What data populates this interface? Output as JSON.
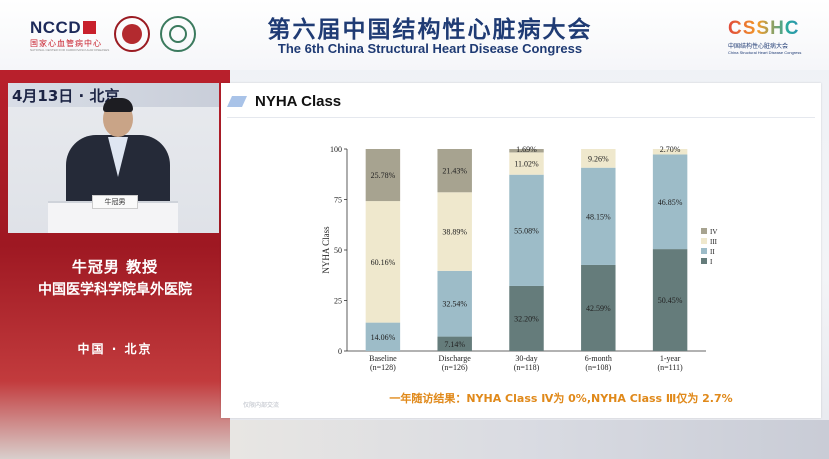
{
  "header": {
    "logo_nccd": "NCCD",
    "logo_nccd_sub": "国家心血管病中心",
    "logo_nccd_sub2": "NATIONAL CENTER FOR CARDIOVASCULAR DISEASES",
    "congress_cn": "第六届中国结构性心脏病大会",
    "congress_en": "The 6th China Structural Heart Disease Congress",
    "logo_csshc": "CSSHC",
    "logo_csshc_sub": "中国结构性心脏病大会",
    "logo_csshc_sub2": "China Structural Heart Disease Congress"
  },
  "video": {
    "banner_text": "4月13日 · 北京",
    "nameplate": "牛冠男"
  },
  "speaker": {
    "name": "牛冠男 教授",
    "org": "中国医学科学院阜外医院",
    "location": "中国 · 北京"
  },
  "slide": {
    "title": "NYHA Class",
    "conclusion": "一年随访结果：NYHA Class Ⅳ为 0%,NYHA Class Ⅲ仅为 2.7%",
    "watermark": "仅限内部交流"
  },
  "chart_data": {
    "type": "bar",
    "stacked": true,
    "ylabel": "NYHA Class",
    "ylim": [
      0,
      100
    ],
    "yticks": [
      "0",
      "25",
      "50",
      "75",
      "100"
    ],
    "categories": [
      "Baseline",
      "Discharge",
      "30-day",
      "6-month",
      "1-year"
    ],
    "category_n": [
      "(n=128)",
      "(n=126)",
      "(n=118)",
      "(n=108)",
      "(n=111)"
    ],
    "legend_position": "right",
    "series": [
      {
        "name": "I",
        "color": "#657c7b",
        "values": [
          0,
          7.14,
          32.2,
          42.59,
          50.45
        ],
        "labels": [
          "",
          "7.14%",
          "32.20%",
          "42.59%",
          "50.45%"
        ]
      },
      {
        "name": "II",
        "color": "#9dbcc8",
        "values": [
          14.06,
          32.54,
          55.08,
          48.15,
          46.85
        ],
        "labels": [
          "14.06%",
          "32.54%",
          "55.08%",
          "48.15%",
          "46.85%"
        ]
      },
      {
        "name": "III",
        "color": "#efe8cd",
        "values": [
          60.16,
          38.89,
          11.02,
          9.26,
          2.7
        ],
        "labels": [
          "60.16%",
          "38.89%",
          "11.02%",
          "9.26%",
          "2.70%"
        ]
      },
      {
        "name": "IV",
        "color": "#a7a390",
        "values": [
          25.78,
          21.43,
          1.69,
          0,
          0
        ],
        "labels": [
          "25.78%",
          "21.43%",
          "1.69%",
          "",
          ""
        ]
      }
    ]
  }
}
